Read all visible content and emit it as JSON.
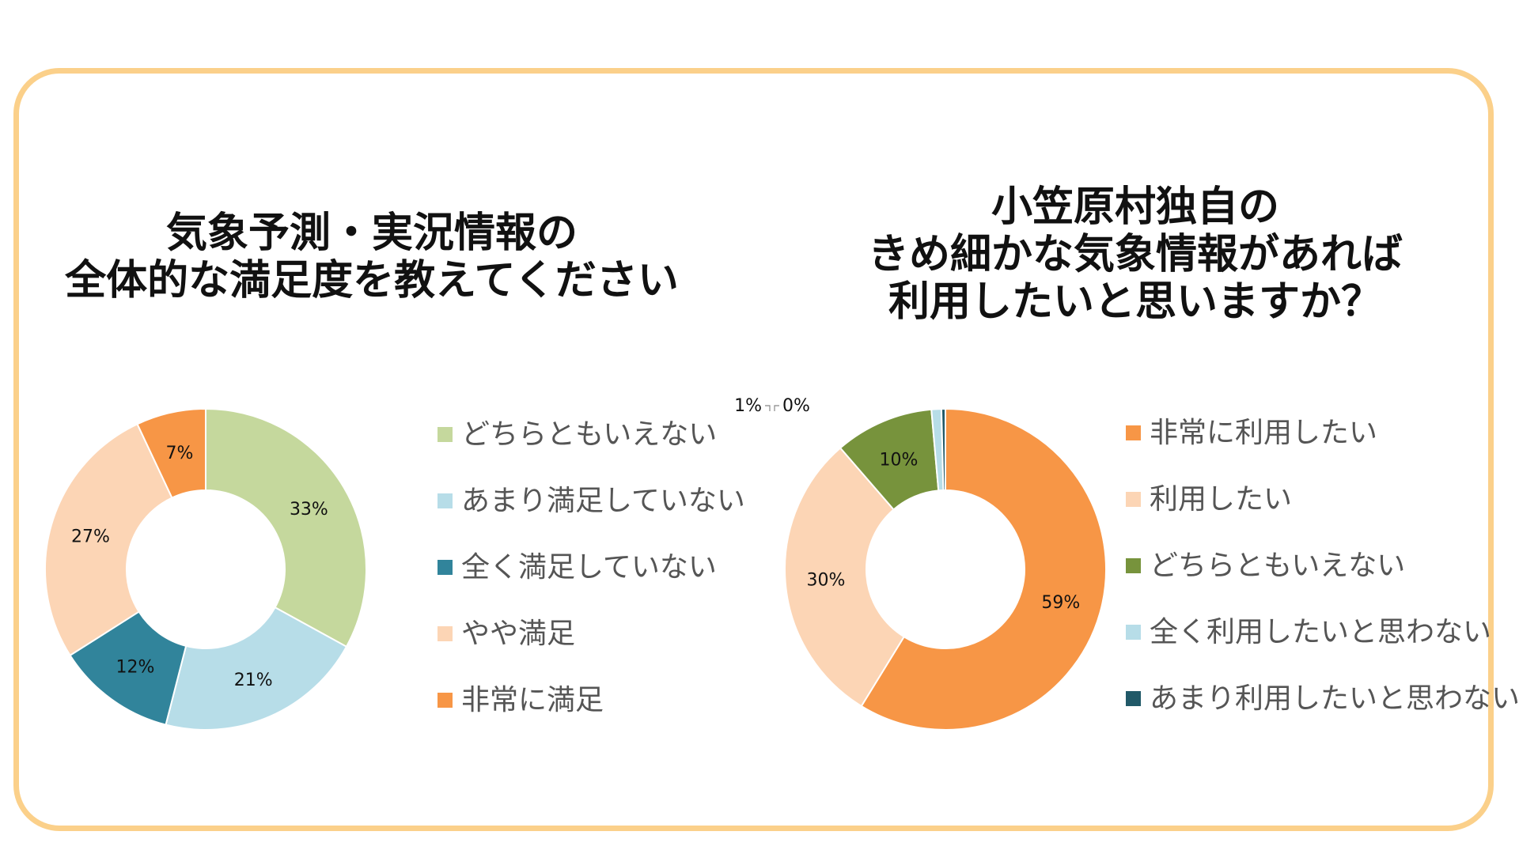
{
  "chart_data": [
    {
      "type": "pie",
      "title": [
        "気象予測・実況情報の",
        "全体的な満足度を教えてください"
      ],
      "slices": [
        {
          "label": "どちらともいえない",
          "value": 33,
          "value_label": "33%",
          "color": "#c5d89d"
        },
        {
          "label": "あまり満足していない",
          "value": 21,
          "value_label": "21%",
          "color": "#b7dde8"
        },
        {
          "label": "全く満足していない",
          "value": 12,
          "value_label": "12%",
          "color": "#31849b"
        },
        {
          "label": "やや満足",
          "value": 27,
          "value_label": "27%",
          "color": "#fcd5b5"
        },
        {
          "label": "非常に満足",
          "value": 7,
          "value_label": "7%",
          "color": "#f79646"
        }
      ],
      "legend": [
        "どちらともいえない",
        "あまり満足していない",
        "全く満足していない",
        "やや満足",
        "非常に満足"
      ],
      "legend_position": "right"
    },
    {
      "type": "pie",
      "title": [
        "小笠原村独自の",
        "きめ細かな気象情報があれば",
        "利用したいと思いますか？"
      ],
      "slices": [
        {
          "label": "非常に利用したい",
          "value": 59,
          "value_label": "59%",
          "color": "#f79646"
        },
        {
          "label": "利用したい",
          "value": 30,
          "value_label": "30%",
          "color": "#fcd5b5"
        },
        {
          "label": "どちらともいえない",
          "value": 10,
          "value_label": "10%",
          "color": "#77933c"
        },
        {
          "label": "全く利用したいと思わない",
          "value": 1,
          "value_label": "1%",
          "color": "#b7dde8"
        },
        {
          "label": "あまり利用したいと思わない",
          "value": 0.4,
          "value_label": "0%",
          "color": "#215968"
        }
      ],
      "legend": [
        "非常に利用したい",
        "利用したい",
        "どちらともいえない",
        "全く利用したいと思わない",
        "あまり利用したいと思わない"
      ],
      "legend_position": "right"
    }
  ]
}
